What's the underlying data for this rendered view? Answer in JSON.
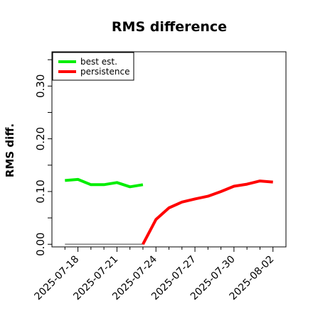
{
  "chart_data": {
    "type": "line",
    "title": "RMS difference",
    "xlabel": "",
    "ylabel": "RMS diff.",
    "x_ticks": [
      "2025-07-18",
      "2025-07-21",
      "2025-07-24",
      "2025-07-27",
      "2025-07-30",
      "2025-08-02"
    ],
    "y_ticks": [
      "0.00",
      "0.10",
      "0.20",
      "0.30"
    ],
    "ylim": [
      -0.005,
      0.365
    ],
    "xlim": [
      "2025-07-16",
      "2025-08-03"
    ],
    "legend_position": "top-left",
    "grid": false,
    "reference_line": {
      "x": [
        "2025-07-17",
        "2025-07-23"
      ],
      "y": [
        0.0,
        0.0
      ],
      "color": "#808080"
    },
    "series": [
      {
        "name": "best est.",
        "color": "#00ee00",
        "x": [
          "2025-07-17",
          "2025-07-18",
          "2025-07-19",
          "2025-07-20",
          "2025-07-21",
          "2025-07-22",
          "2025-07-23"
        ],
        "y": [
          0.121,
          0.123,
          0.113,
          0.113,
          0.117,
          0.109,
          0.113
        ]
      },
      {
        "name": "persistence",
        "color": "#ff0000",
        "x": [
          "2025-07-23",
          "2025-07-24",
          "2025-07-25",
          "2025-07-26",
          "2025-07-27",
          "2025-07-28",
          "2025-07-29",
          "2025-07-30",
          "2025-07-31",
          "2025-08-01",
          "2025-08-02"
        ],
        "y": [
          0.0,
          0.047,
          0.069,
          0.08,
          0.086,
          0.091,
          0.1,
          0.11,
          0.114,
          0.12,
          0.118
        ]
      }
    ]
  }
}
